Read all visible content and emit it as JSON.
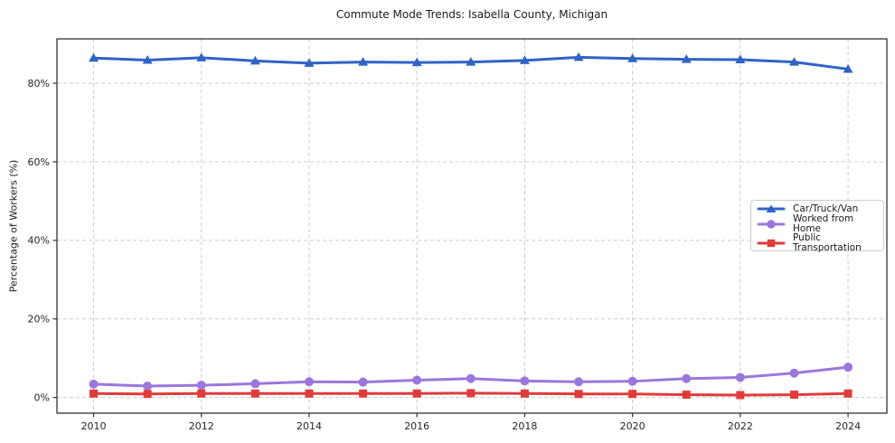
{
  "chart_data": {
    "type": "line",
    "title": "Commute Mode Trends: Isabella County, Michigan",
    "xlabel": "",
    "ylabel": "Percentage of Workers (%)",
    "x": [
      2010,
      2011,
      2012,
      2013,
      2014,
      2015,
      2016,
      2017,
      2018,
      2019,
      2020,
      2021,
      2022,
      2023,
      2024
    ],
    "xticks": [
      2010,
      2012,
      2014,
      2016,
      2018,
      2020,
      2022,
      2024
    ],
    "yticks": [
      0,
      20,
      40,
      60,
      80
    ],
    "ytick_suffix": "%",
    "xlim": [
      2009.32,
      2024.72
    ],
    "ylim": [
      -4.0,
      91.3
    ],
    "grid": true,
    "grid_style": "dashed",
    "legend_position": "center right",
    "series": [
      {
        "name": "Car/Truck/Van",
        "color": "#2f63c6",
        "marker": "triangle",
        "values": [
          86.4,
          85.9,
          86.5,
          85.7,
          85.1,
          85.4,
          85.3,
          85.4,
          85.8,
          86.6,
          86.3,
          86.1,
          86.0,
          85.4,
          83.6
        ]
      },
      {
        "name": "Worked from Home",
        "color": "#9a77dc",
        "marker": "circle",
        "values": [
          3.4,
          2.9,
          3.1,
          3.5,
          4.0,
          3.9,
          4.4,
          4.8,
          4.2,
          4.0,
          4.1,
          4.8,
          5.1,
          6.2,
          7.7
        ]
      },
      {
        "name": "Public Transportation",
        "color": "#e03b3b",
        "marker": "square",
        "values": [
          1.0,
          0.9,
          1.0,
          1.0,
          1.0,
          1.0,
          1.0,
          1.1,
          1.0,
          0.9,
          0.9,
          0.7,
          0.6,
          0.7,
          1.0
        ]
      }
    ],
    "colors": {
      "grid": "#cccccc",
      "spine": "#333333",
      "tick_label": "#262626",
      "title": "#1a1a1a",
      "background": "#ffffff"
    }
  }
}
